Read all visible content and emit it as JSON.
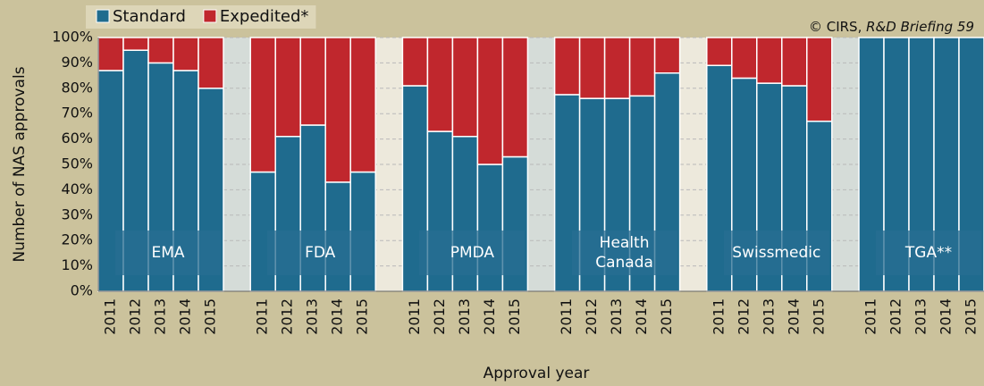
{
  "chart_data": {
    "type": "stacked_bar",
    "ylabel": "Number of NAS approvals",
    "xlabel": "Approval year",
    "source": [
      "© CIRS,",
      "R&D Briefing 59"
    ],
    "groups": [
      "EMA",
      "FDA",
      "PMDA",
      "Health Canada",
      "Swissmedic",
      "TGA**"
    ],
    "categories": [
      "2011",
      "2012",
      "2013",
      "2014",
      "2015",
      "2011",
      "2012",
      "2013",
      "2014",
      "2015",
      "2011",
      "2012",
      "2013",
      "2014",
      "2015",
      "2011",
      "2012",
      "2013",
      "2014",
      "2015",
      "2011",
      "2012",
      "2013",
      "2014",
      "2015",
      "2011",
      "2012",
      "2013",
      "2014",
      "2015"
    ],
    "series": [
      {
        "name": "Standard",
        "color": "#1f6b8e",
        "values": [
          87,
          95,
          90,
          87,
          80,
          47,
          61,
          65.5,
          43,
          47,
          81,
          63,
          61,
          50,
          53,
          77.5,
          76,
          76,
          77,
          86,
          89,
          84,
          82,
          81,
          67,
          100,
          100,
          100,
          100,
          100
        ]
      },
      {
        "name": "Expedited*",
        "color": "#c0272d",
        "values": [
          13,
          5,
          10,
          13,
          20,
          53,
          39,
          34.5,
          57,
          53,
          19,
          37,
          39,
          50,
          47,
          22.5,
          24,
          24,
          23,
          14,
          11,
          16,
          18,
          19,
          33,
          0,
          0,
          0,
          0,
          0
        ]
      }
    ],
    "ylim": [
      0,
      100
    ],
    "yticks": [
      {
        "value": 0,
        "label": "0%"
      },
      {
        "value": 10,
        "label": "10%"
      },
      {
        "value": 20,
        "label": "20%"
      },
      {
        "value": 30,
        "label": "30%"
      },
      {
        "value": 40,
        "label": "40%"
      },
      {
        "value": 50,
        "label": "50%"
      },
      {
        "value": 60,
        "label": "60%"
      },
      {
        "value": 70,
        "label": "70%"
      },
      {
        "value": 80,
        "label": "80%"
      },
      {
        "value": 90,
        "label": "90%"
      },
      {
        "value": 100,
        "label": "100%"
      }
    ],
    "grid": true,
    "legend": "top-left"
  }
}
